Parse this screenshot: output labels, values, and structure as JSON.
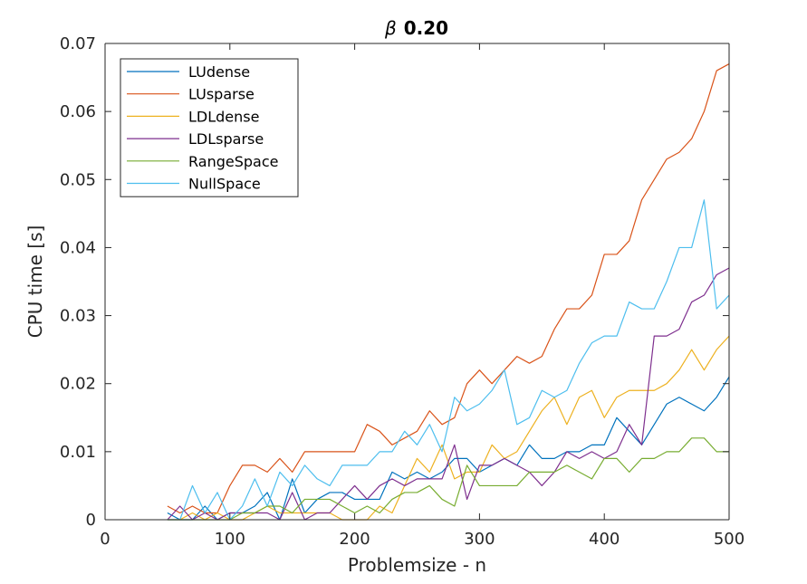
{
  "chart_data": {
    "type": "line",
    "title_symbol": "β",
    "title_value": "0.20",
    "xlabel": "Problemsize - n",
    "ylabel": "CPU time [s]",
    "xlim": [
      0,
      500
    ],
    "ylim": [
      0,
      0.07
    ],
    "xticks": [
      0,
      100,
      200,
      300,
      400,
      500
    ],
    "xtick_labels": [
      "0",
      "100",
      "200",
      "300",
      "400",
      "500"
    ],
    "yticks": [
      0,
      0.01,
      0.02,
      0.03,
      0.04,
      0.05,
      0.06,
      0.07
    ],
    "ytick_labels": [
      "0",
      "0.01",
      "0.02",
      "0.03",
      "0.04",
      "0.05",
      "0.06",
      "0.07"
    ],
    "grid": false,
    "legend_position": "top-left",
    "x": [
      50,
      60,
      70,
      80,
      90,
      100,
      110,
      120,
      130,
      140,
      150,
      160,
      170,
      180,
      190,
      200,
      210,
      220,
      230,
      240,
      250,
      260,
      270,
      280,
      290,
      300,
      310,
      320,
      330,
      340,
      350,
      360,
      370,
      380,
      390,
      400,
      410,
      420,
      430,
      440,
      450,
      460,
      470,
      480,
      490,
      500
    ],
    "series": [
      {
        "name": "LUdense",
        "color": "#0072BD",
        "values": [
          0.001,
          0,
          0,
          0.002,
          0,
          0.001,
          0.001,
          0.002,
          0.004,
          0,
          0.006,
          0.001,
          0.003,
          0.004,
          0.004,
          0.003,
          0.003,
          0.003,
          0.007,
          0.006,
          0.007,
          0.006,
          0.007,
          0.009,
          0.009,
          0.007,
          0.008,
          0.009,
          0.008,
          0.011,
          0.009,
          0.009,
          0.01,
          0.01,
          0.011,
          0.011,
          0.015,
          0.013,
          0.011,
          0.014,
          0.017,
          0.018,
          0.017,
          0.016,
          0.018,
          0.021
        ]
      },
      {
        "name": "LUsparse",
        "color": "#D95319",
        "values": [
          0.002,
          0.001,
          0.002,
          0.001,
          0.001,
          0.005,
          0.008,
          0.008,
          0.007,
          0.009,
          0.007,
          0.01,
          0.01,
          0.01,
          0.01,
          0.01,
          0.014,
          0.013,
          0.011,
          0.012,
          0.013,
          0.016,
          0.014,
          0.015,
          0.02,
          0.022,
          0.02,
          0.022,
          0.024,
          0.023,
          0.024,
          0.028,
          0.031,
          0.031,
          0.033,
          0.039,
          0.039,
          0.041,
          0.047,
          0.05,
          0.053,
          0.054,
          0.056,
          0.06,
          0.066,
          0.067
        ]
      },
      {
        "name": "LDLdense",
        "color": "#EDB120",
        "values": [
          0,
          0,
          0.001,
          0,
          0.001,
          0,
          0,
          0.001,
          0.002,
          0.001,
          0.001,
          0.001,
          0.001,
          0.001,
          0,
          0,
          0,
          0.002,
          0.001,
          0.005,
          0.009,
          0.007,
          0.011,
          0.006,
          0.007,
          0.007,
          0.011,
          0.009,
          0.01,
          0.013,
          0.016,
          0.018,
          0.014,
          0.018,
          0.019,
          0.015,
          0.018,
          0.019,
          0.019,
          0.019,
          0.02,
          0.022,
          0.025,
          0.022,
          0.025,
          0.027
        ]
      },
      {
        "name": "LDLsparse",
        "color": "#7E2F8E",
        "values": [
          0,
          0.002,
          0,
          0.001,
          0,
          0.001,
          0.001,
          0.001,
          0.001,
          0,
          0.004,
          0,
          0.001,
          0.001,
          0.003,
          0.005,
          0.003,
          0.005,
          0.006,
          0.005,
          0.006,
          0.006,
          0.006,
          0.011,
          0.003,
          0.008,
          0.008,
          0.009,
          0.008,
          0.007,
          0.005,
          0.007,
          0.01,
          0.009,
          0.01,
          0.009,
          0.01,
          0.014,
          0.011,
          0.027,
          0.027,
          0.028,
          0.032,
          0.033,
          0.036,
          0.037
        ]
      },
      {
        "name": "RangeSpace",
        "color": "#77AC30",
        "values": [
          0,
          0,
          0,
          0,
          0,
          0,
          0.001,
          0.001,
          0.002,
          0.002,
          0.001,
          0.003,
          0.003,
          0.003,
          0.002,
          0.001,
          0.002,
          0.001,
          0.003,
          0.004,
          0.004,
          0.005,
          0.003,
          0.002,
          0.008,
          0.005,
          0.005,
          0.005,
          0.005,
          0.007,
          0.007,
          0.007,
          0.008,
          0.007,
          0.006,
          0.009,
          0.009,
          0.007,
          0.009,
          0.009,
          0.01,
          0.01,
          0.012,
          0.012,
          0.01,
          0.01
        ]
      },
      {
        "name": "NullSpace",
        "color": "#4DBEEE",
        "values": [
          0,
          0,
          0.005,
          0.001,
          0.004,
          0,
          0.002,
          0.006,
          0.002,
          0.007,
          0.005,
          0.008,
          0.006,
          0.005,
          0.008,
          0.008,
          0.008,
          0.01,
          0.01,
          0.013,
          0.011,
          0.014,
          0.01,
          0.018,
          0.016,
          0.017,
          0.019,
          0.022,
          0.014,
          0.015,
          0.019,
          0.018,
          0.019,
          0.023,
          0.026,
          0.027,
          0.027,
          0.032,
          0.031,
          0.031,
          0.035,
          0.04,
          0.04,
          0.047,
          0.031,
          0.033
        ]
      }
    ]
  }
}
